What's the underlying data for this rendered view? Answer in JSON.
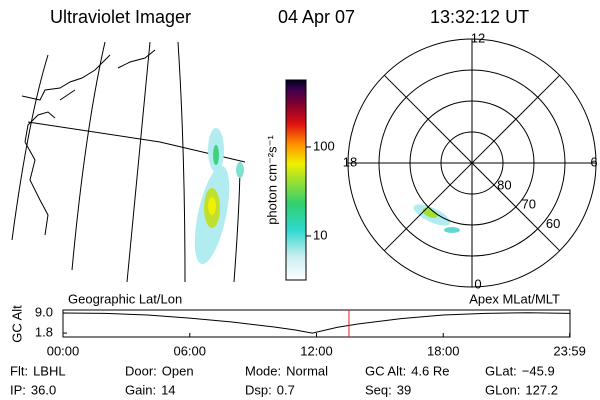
{
  "header": {
    "instrument": "Ultraviolet Imager",
    "date": "04 Apr 07",
    "time": "13:32:12 UT"
  },
  "colorbar": {
    "label": "photon cm⁻²s⁻¹",
    "log": true,
    "ylim": [
      3.2,
      566
    ],
    "ticks": [
      10,
      100
    ]
  },
  "polar": {
    "mlt_labels": [
      12,
      18,
      6,
      0
    ],
    "lat_rings": [
      80,
      70,
      60
    ],
    "lat_min": 50
  },
  "timeline": {
    "left_label": "Geographic Lat/Lon",
    "right_label": "Apex MLat/MLT",
    "y_label": "GC Alt",
    "xlim": [
      0,
      24
    ],
    "xticks": [
      {
        "value": 0,
        "label": "00:00"
      },
      {
        "value": 6,
        "label": "06:00"
      },
      {
        "value": 12,
        "label": "12:00"
      },
      {
        "value": 18,
        "label": "18:00"
      },
      {
        "value": 23.983,
        "label": "23:59"
      }
    ],
    "ylim": [
      0.4,
      10.1
    ],
    "yticks": [
      {
        "value": 9,
        "label": "9.0"
      },
      1.8
    ],
    "x": [
      0,
      2,
      4,
      6,
      8,
      10,
      11,
      11.8,
      13,
      14,
      16,
      18,
      20,
      22,
      23.98
    ],
    "values": [
      9.0,
      8.9,
      8.3,
      7.2,
      5.8,
      4.0,
      2.9,
      1.8,
      3.9,
      5.1,
      7.0,
      8.3,
      8.9,
      9.1,
      8.9
    ],
    "current_time": 13.537,
    "marker_color": "#e02020"
  },
  "info": [
    [
      [
        "Flt:",
        "LBHL"
      ],
      [
        "Door:",
        "Open"
      ],
      [
        "Mode:",
        "Normal"
      ],
      [
        "GC Alt:",
        "4.6 Re"
      ],
      [
        "GLat:",
        "−45.9"
      ]
    ],
    [
      [
        "IP:",
        "36.0"
      ],
      [
        "Gain:",
        "14"
      ],
      [
        "Dsp:",
        "0.7"
      ],
      [
        "Seq:",
        "39"
      ],
      [
        "GLon:",
        "127.2"
      ]
    ]
  ]
}
